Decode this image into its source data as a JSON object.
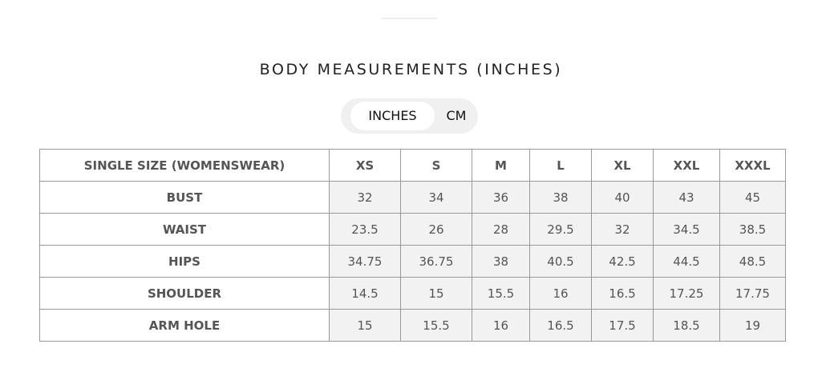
{
  "title": "BODY MEASUREMENTS (INCHES)",
  "unit_toggle": {
    "options": [
      "INCHES",
      "CM"
    ],
    "selected": "INCHES"
  },
  "table": {
    "headers": [
      "SINGLE SIZE (WOMENSWEAR)",
      "XS",
      "S",
      "M",
      "L",
      "XL",
      "XXL",
      "XXXL"
    ],
    "rows": [
      {
        "label": "BUST",
        "values": [
          "32",
          "34",
          "36",
          "38",
          "40",
          "43",
          "45"
        ]
      },
      {
        "label": "WAIST",
        "values": [
          "23.5",
          "26",
          "28",
          "29.5",
          "32",
          "34.5",
          "38.5"
        ]
      },
      {
        "label": "HIPS",
        "values": [
          "34.75",
          "36.75",
          "38",
          "40.5",
          "42.5",
          "44.5",
          "48.5"
        ]
      },
      {
        "label": "SHOULDER",
        "values": [
          "14.5",
          "15",
          "15.5",
          "16",
          "16.5",
          "17.25",
          "17.75"
        ]
      },
      {
        "label": "ARM HOLE",
        "values": [
          "15",
          "15.5",
          "16",
          "16.5",
          "17.5",
          "18.5",
          "19"
        ]
      }
    ]
  }
}
